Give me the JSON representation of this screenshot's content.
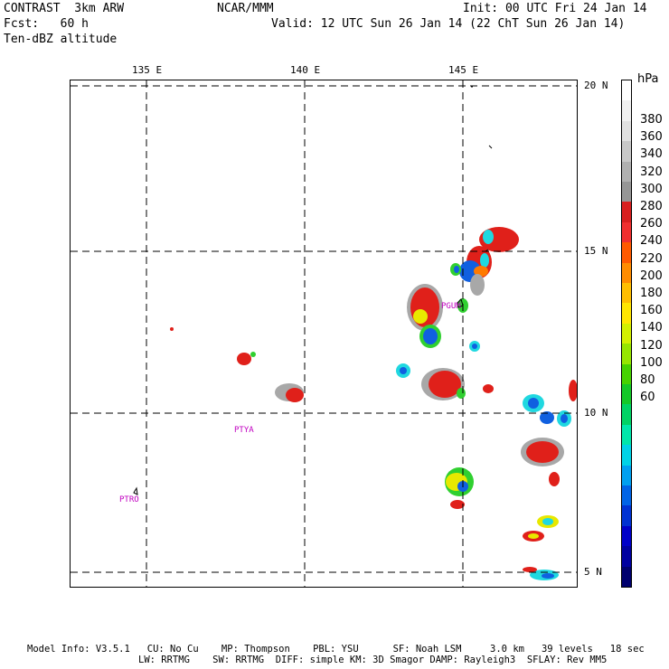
{
  "header": {
    "model": "CONTRAST  3km ARW",
    "org": "NCAR/MMM",
    "init": "Init: 00 UTC Fri 24 Jan 14",
    "fcst": "Fcst:   60 h",
    "valid": "Valid: 12 UTC Sun 26 Jan 14 (22 ChT Sun 26 Jan 14)",
    "field": "Ten-dBZ altitude"
  },
  "map": {
    "lon_labels": [
      "135 E",
      "140 E",
      "145 E"
    ],
    "lat_labels": [
      "20 N",
      "15 N",
      "10 N",
      "5 N"
    ],
    "stations": [
      "PGUM",
      "PTYA",
      "PTRO"
    ]
  },
  "colorbar": {
    "unit": "hPa",
    "labels": [
      "380",
      "360",
      "340",
      "320",
      "300",
      "280",
      "260",
      "240",
      "220",
      "200",
      "180",
      "160",
      "140",
      "120",
      "100",
      "80",
      "60"
    ],
    "colors": [
      "#ffffff",
      "#f0f0f0",
      "#e0e0e0",
      "#c8c8c8",
      "#b0b0b0",
      "#969696",
      "#d82020",
      "#f03030",
      "#ff5a00",
      "#ff8c00",
      "#ffbe00",
      "#ffe600",
      "#d2f000",
      "#96e600",
      "#46d200",
      "#14c828",
      "#00d264",
      "#00e6aa",
      "#00d2e6",
      "#00a0f0",
      "#0064e6",
      "#0032d2",
      "#0000c8",
      "#0000a0",
      "#00006e"
    ]
  },
  "footer": {
    "line1": "Model Info: V3.5.1   CU: No Cu    MP: Thompson    PBL: YSU      SF: Noah LSM     3.0 km   39 levels   18 sec",
    "line2": "LW: RRTMG    SW: RRTMG  DIFF: simple KM: 3D Smagor DAMP: Rayleigh3  SFLAY: Rev MM5"
  }
}
